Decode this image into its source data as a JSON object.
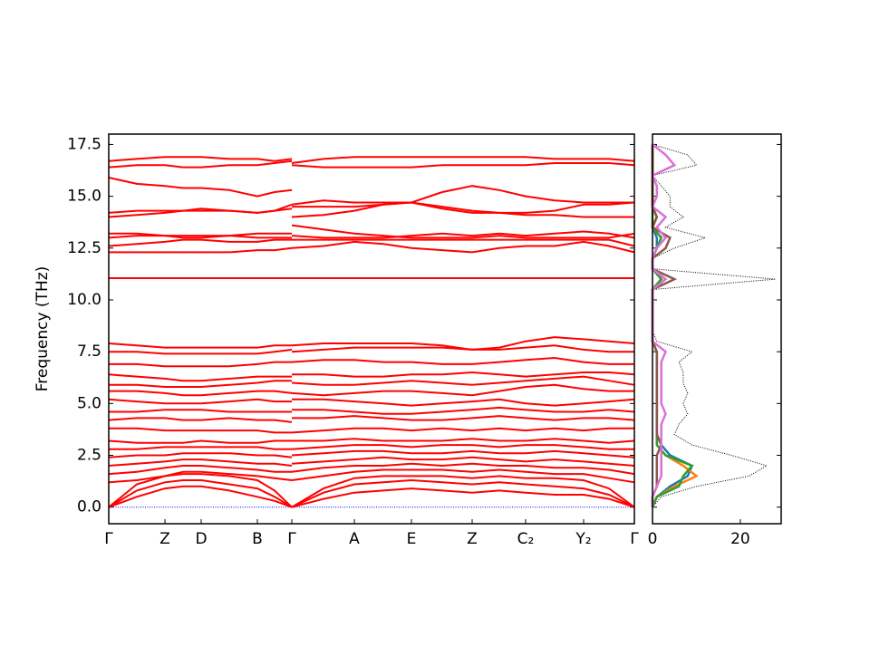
{
  "chart_data": [
    {
      "type": "bands",
      "ylabel": "Frequency (THz)",
      "color": "red",
      "x": [
        0,
        0.31,
        0.62,
        0.82,
        1.02,
        1.33,
        1.64,
        1.83,
        2.02,
        2.02,
        2.02,
        2.37,
        2.71,
        3.03,
        3.34,
        3.68,
        4.01,
        4.31,
        4.6,
        4.92,
        5.24,
        5.52,
        5.8
      ],
      "xlim": [
        0,
        5.8
      ],
      "xticks": [
        {
          "value": 0,
          "label": "Γ"
        },
        {
          "value": 0.62,
          "label": "Z"
        },
        {
          "value": 1.02,
          "label": "D"
        },
        {
          "value": 1.64,
          "label": "B"
        },
        {
          "value": 2.02,
          "label": "Γ"
        },
        {
          "value": 2.71,
          "label": "A"
        },
        {
          "value": 3.34,
          "label": "E"
        },
        {
          "value": 4.01,
          "label": "Z"
        },
        {
          "value": 4.6,
          "label": "C₂"
        },
        {
          "value": 5.24,
          "label": "Y₂"
        },
        {
          "value": 5.8,
          "label": "Γ"
        }
      ],
      "ylim": [
        -0.8,
        18.0
      ],
      "yticks": [
        {
          "value": 0,
          "label": "0.0"
        },
        2.5,
        {
          "value": 5,
          "label": "5.0"
        },
        7.5,
        {
          "value": 10,
          "label": "10.0"
        },
        12.5,
        {
          "value": 15,
          "label": "15.0"
        },
        17.5
      ],
      "hline": {
        "value": 0,
        "color": "blue"
      },
      "series": [
        {
          "values": [
            0,
            0.5,
            0.9,
            1.0,
            1.0,
            0.8,
            0.5,
            0.3,
            0,
            null,
            0,
            0.4,
            0.7,
            0.8,
            0.9,
            0.8,
            0.7,
            0.8,
            0.7,
            0.6,
            0.6,
            0.4,
            0
          ]
        },
        {
          "values": [
            0,
            0.8,
            1.2,
            1.3,
            1.3,
            1.1,
            0.9,
            0.5,
            0,
            null,
            0,
            0.7,
            1.1,
            1.2,
            1.3,
            1.2,
            1.1,
            1.2,
            1.1,
            1.0,
            0.9,
            0.6,
            0
          ]
        },
        {
          "values": [
            0,
            1.1,
            1.5,
            1.6,
            1.6,
            1.5,
            1.3,
            0.8,
            0,
            null,
            0,
            0.9,
            1.4,
            1.5,
            1.5,
            1.5,
            1.4,
            1.5,
            1.4,
            1.4,
            1.3,
            0.9,
            0
          ]
        },
        {
          "values": [
            1.2,
            1.3,
            1.5,
            1.7,
            1.7,
            1.6,
            1.5,
            1.4,
            1.3,
            null,
            1.3,
            1.5,
            1.7,
            1.8,
            1.8,
            1.8,
            1.7,
            1.8,
            1.7,
            1.6,
            1.6,
            1.4,
            1.2
          ]
        },
        {
          "values": [
            1.6,
            1.7,
            1.9,
            2.0,
            2.0,
            1.9,
            1.8,
            1.7,
            1.7,
            null,
            1.7,
            1.9,
            2.0,
            2.0,
            2.1,
            2.0,
            2.1,
            2.0,
            2.0,
            1.9,
            1.9,
            1.8,
            1.6
          ]
        },
        {
          "values": [
            2.0,
            2.1,
            2.2,
            2.3,
            2.3,
            2.2,
            2.1,
            2.1,
            2.0,
            null,
            2.1,
            2.2,
            2.3,
            2.4,
            2.3,
            2.3,
            2.4,
            2.3,
            2.2,
            2.3,
            2.2,
            2.1,
            2.0
          ]
        },
        {
          "values": [
            2.4,
            2.5,
            2.5,
            2.6,
            2.6,
            2.6,
            2.5,
            2.5,
            2.4,
            null,
            2.5,
            2.6,
            2.7,
            2.7,
            2.6,
            2.6,
            2.7,
            2.6,
            2.6,
            2.7,
            2.6,
            2.5,
            2.4
          ]
        },
        {
          "values": [
            2.8,
            2.8,
            2.9,
            2.9,
            2.9,
            2.9,
            2.9,
            2.8,
            2.8,
            null,
            2.8,
            2.9,
            3.0,
            3.0,
            2.9,
            3.0,
            3.0,
            2.9,
            3.0,
            3.0,
            2.9,
            2.8,
            2.8
          ]
        },
        {
          "values": [
            3.2,
            3.1,
            3.1,
            3.1,
            3.2,
            3.1,
            3.1,
            3.2,
            3.2,
            null,
            3.2,
            3.2,
            3.3,
            3.2,
            3.2,
            3.2,
            3.3,
            3.2,
            3.2,
            3.3,
            3.2,
            3.1,
            3.2
          ]
        },
        {
          "values": [
            3.8,
            3.8,
            3.7,
            3.7,
            3.7,
            3.7,
            3.7,
            3.6,
            3.6,
            null,
            3.6,
            3.7,
            3.8,
            3.8,
            3.7,
            3.8,
            3.7,
            3.8,
            3.7,
            3.8,
            3.7,
            3.8,
            3.8
          ]
        },
        {
          "values": [
            4.2,
            4.3,
            4.3,
            4.2,
            4.2,
            4.3,
            4.2,
            4.2,
            4.1,
            null,
            4.3,
            4.3,
            4.4,
            4.3,
            4.2,
            4.2,
            4.3,
            4.4,
            4.3,
            4.2,
            4.3,
            4.3,
            4.2
          ]
        },
        {
          "values": [
            4.6,
            4.6,
            4.7,
            4.7,
            4.7,
            4.6,
            4.6,
            4.6,
            4.6,
            null,
            4.7,
            4.7,
            4.6,
            4.5,
            4.5,
            4.6,
            4.7,
            4.8,
            4.7,
            4.6,
            4.6,
            4.7,
            4.6
          ]
        },
        {
          "values": [
            5.2,
            5.1,
            5.0,
            5.0,
            5.0,
            5.1,
            5.2,
            5.1,
            5.1,
            null,
            5.2,
            5.2,
            5.1,
            5.0,
            4.9,
            5.0,
            5.1,
            5.2,
            5.0,
            4.9,
            5.0,
            5.1,
            5.2
          ]
        },
        {
          "values": [
            5.6,
            5.6,
            5.5,
            5.4,
            5.4,
            5.5,
            5.6,
            5.6,
            5.5,
            null,
            5.5,
            5.4,
            5.5,
            5.6,
            5.6,
            5.5,
            5.4,
            5.6,
            5.8,
            5.9,
            5.7,
            5.6,
            5.6
          ]
        },
        {
          "values": [
            5.9,
            5.9,
            5.8,
            5.8,
            5.8,
            5.9,
            6.0,
            6.1,
            6.1,
            null,
            6.0,
            5.9,
            5.9,
            6.0,
            6.1,
            6.0,
            5.9,
            6.0,
            6.1,
            6.2,
            6.3,
            6.1,
            5.9
          ]
        },
        {
          "values": [
            6.4,
            6.3,
            6.2,
            6.1,
            6.1,
            6.2,
            6.3,
            6.3,
            6.3,
            null,
            6.4,
            6.4,
            6.3,
            6.3,
            6.4,
            6.4,
            6.5,
            6.4,
            6.3,
            6.4,
            6.5,
            6.5,
            6.4
          ]
        },
        {
          "values": [
            6.9,
            6.9,
            6.8,
            6.8,
            6.8,
            6.8,
            6.9,
            7.0,
            7.0,
            null,
            7.0,
            7.1,
            7.1,
            7.0,
            7.0,
            6.9,
            6.9,
            7.0,
            7.1,
            7.2,
            7.0,
            6.9,
            6.9
          ]
        },
        {
          "values": [
            7.5,
            7.5,
            7.4,
            7.4,
            7.4,
            7.4,
            7.4,
            7.5,
            7.6,
            null,
            7.5,
            7.6,
            7.7,
            7.7,
            7.7,
            7.7,
            7.6,
            7.6,
            7.7,
            7.8,
            7.6,
            7.5,
            7.5
          ]
        },
        {
          "values": [
            7.9,
            7.8,
            7.7,
            7.7,
            7.7,
            7.7,
            7.7,
            7.8,
            7.8,
            null,
            7.8,
            7.9,
            7.9,
            7.9,
            7.9,
            7.8,
            7.6,
            7.7,
            8.0,
            8.2,
            8.1,
            8.0,
            7.9
          ]
        },
        {
          "values": [
            11.05,
            11.05,
            11.05,
            11.05,
            11.05,
            11.05,
            11.05,
            11.05,
            11.05,
            null,
            11.05,
            11.05,
            11.05,
            11.05,
            11.05,
            11.05,
            11.05,
            11.05,
            11.05,
            11.05,
            11.05,
            11.05,
            11.05
          ]
        },
        {
          "values": [
            12.3,
            12.3,
            12.3,
            12.3,
            12.3,
            12.3,
            12.4,
            12.4,
            12.5,
            null,
            12.5,
            12.6,
            12.8,
            12.7,
            12.5,
            12.4,
            12.3,
            12.5,
            12.6,
            12.6,
            12.8,
            12.6,
            12.3
          ]
        },
        {
          "values": [
            12.6,
            12.7,
            12.8,
            12.9,
            12.9,
            12.8,
            12.8,
            12.9,
            12.9,
            null,
            12.9,
            12.9,
            12.9,
            12.9,
            12.9,
            12.9,
            12.9,
            12.9,
            12.9,
            12.9,
            12.9,
            12.9,
            12.6
          ]
        },
        {
          "values": [
            13.0,
            13.1,
            13.1,
            13.1,
            13.1,
            13.1,
            13.2,
            13.2,
            13.2,
            null,
            13.1,
            13.0,
            13.0,
            13.0,
            13.1,
            13.2,
            13.1,
            13.2,
            13.1,
            13.2,
            13.3,
            13.2,
            13.0
          ]
        },
        {
          "values": [
            13.2,
            13.2,
            13.1,
            13.0,
            13.0,
            13.1,
            13.0,
            13.0,
            13.0,
            null,
            13.6,
            13.4,
            13.2,
            13.1,
            13.0,
            13.0,
            13.0,
            13.1,
            13.0,
            13.0,
            13.0,
            13.0,
            13.2
          ]
        },
        {
          "values": [
            14.0,
            14.1,
            14.2,
            14.3,
            14.3,
            14.3,
            14.2,
            14.3,
            14.4,
            null,
            14.5,
            14.5,
            14.5,
            14.6,
            14.7,
            14.5,
            14.3,
            14.2,
            14.1,
            14.1,
            14.0,
            14.0,
            14.0
          ]
        },
        {
          "values": [
            14.2,
            14.3,
            14.3,
            14.3,
            14.4,
            14.3,
            14.2,
            14.3,
            14.6,
            null,
            14.0,
            14.1,
            14.3,
            14.6,
            14.7,
            14.4,
            14.2,
            14.2,
            14.2,
            14.3,
            14.6,
            14.6,
            14.7
          ]
        },
        {
          "values": [
            15.9,
            15.6,
            15.5,
            15.4,
            15.4,
            15.3,
            15.0,
            15.2,
            15.3,
            null,
            14.6,
            14.8,
            14.7,
            14.7,
            14.7,
            15.2,
            15.5,
            15.3,
            15.0,
            14.8,
            14.7,
            14.7,
            14.7
          ]
        },
        {
          "values": [
            16.4,
            16.5,
            16.5,
            16.4,
            16.4,
            16.5,
            16.5,
            16.6,
            16.7,
            null,
            16.5,
            16.4,
            16.4,
            16.4,
            16.4,
            16.5,
            16.5,
            16.5,
            16.5,
            16.6,
            16.6,
            16.6,
            16.5
          ]
        },
        {
          "values": [
            16.7,
            16.8,
            16.9,
            16.9,
            16.9,
            16.8,
            16.8,
            16.7,
            16.8,
            null,
            16.6,
            16.8,
            16.9,
            16.9,
            16.9,
            16.9,
            16.9,
            16.9,
            16.9,
            16.8,
            16.8,
            16.8,
            16.7
          ]
        }
      ]
    },
    {
      "type": "dos",
      "xlim": [
        0,
        29.3
      ],
      "xticks": [
        0,
        20
      ],
      "y": [
        0,
        0.5,
        1,
        1.5,
        2,
        2.5,
        3,
        3.5,
        4,
        4.5,
        5,
        5.5,
        6,
        6.5,
        7,
        7.5,
        8,
        8.5,
        9,
        9.5,
        10,
        10.5,
        11,
        11.5,
        12,
        12.5,
        13,
        13.5,
        14,
        14.5,
        15,
        15.5,
        16,
        16.5,
        17,
        17.5
      ],
      "series": [
        {
          "color": "black",
          "linestyle": "dotted",
          "values": [
            0,
            2,
            10,
            22,
            26,
            18,
            9,
            5,
            6,
            8,
            7,
            8,
            7,
            7,
            6,
            9,
            1,
            0,
            0,
            0,
            0,
            0,
            28,
            0,
            0,
            5,
            12,
            3,
            7,
            4,
            4,
            2,
            0,
            10,
            8,
            0
          ]
        },
        {
          "color": "#1f77b4",
          "values": [
            0,
            1,
            4,
            8,
            9,
            4,
            2,
            1,
            1,
            1,
            1,
            1,
            1,
            1,
            1,
            1,
            0,
            0,
            0,
            0,
            0,
            0,
            2,
            0,
            0,
            1,
            1,
            0,
            1,
            0,
            0,
            0,
            0,
            0,
            0,
            0
          ]
        },
        {
          "color": "#ff7f0e",
          "values": [
            0,
            1,
            5,
            10,
            7,
            3,
            1,
            1,
            1,
            1,
            1,
            1,
            1,
            1,
            1,
            1,
            0,
            0,
            0,
            0,
            0,
            0,
            2,
            0,
            0,
            1,
            2,
            0,
            1,
            0,
            0,
            0,
            0,
            0,
            0,
            0
          ]
        },
        {
          "color": "#2ca02c",
          "values": [
            0,
            1,
            6,
            7,
            9,
            3,
            1,
            1,
            1,
            1,
            1,
            1,
            1,
            1,
            1,
            1,
            0,
            0,
            0,
            0,
            0,
            0,
            2,
            0,
            0,
            1,
            2,
            0,
            0,
            0,
            0,
            0,
            0,
            0,
            0,
            0
          ]
        },
        {
          "color": "#8c564b",
          "values": [
            0,
            0,
            1,
            1,
            1,
            1,
            2,
            1,
            1,
            1,
            1,
            1,
            1,
            1,
            1,
            1,
            0,
            0,
            0,
            0,
            0,
            0,
            5,
            0,
            0,
            3,
            4,
            0,
            1,
            0,
            0,
            0,
            0,
            0,
            0,
            0
          ]
        },
        {
          "color": "#da70d6",
          "values": [
            0,
            0,
            1,
            2,
            2,
            2,
            2,
            2,
            2,
            3,
            2,
            2,
            2,
            2,
            2,
            3,
            0,
            0,
            0,
            0,
            0,
            0,
            3,
            0,
            0,
            1,
            3,
            1,
            3,
            0,
            1,
            1,
            0,
            5,
            3,
            0
          ]
        }
      ]
    }
  ]
}
